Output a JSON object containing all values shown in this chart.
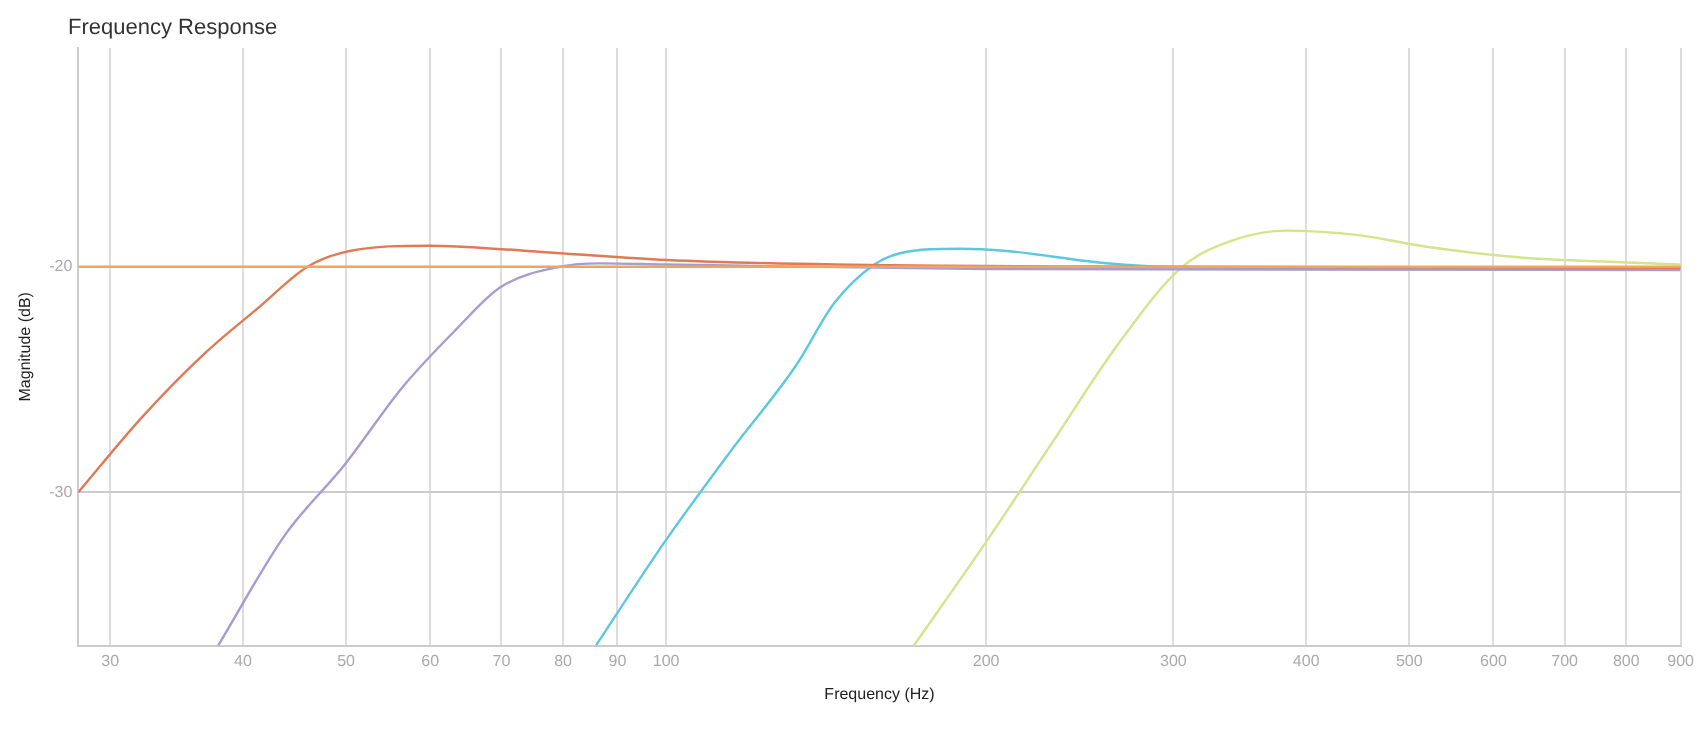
{
  "chart_data": {
    "type": "line",
    "title": "Frequency Response",
    "xlabel": "Frequency (Hz)",
    "ylabel": "Magnitude (dB)",
    "log": "x",
    "xlim": [
      28,
      900
    ],
    "ylim": [
      -36.8,
      -10.3
    ],
    "xticks": [
      30,
      40,
      50,
      60,
      70,
      80,
      90,
      100,
      200,
      300,
      400,
      500,
      600,
      700,
      800,
      900
    ],
    "yticks": [
      -30,
      -20
    ],
    "grid": true,
    "legend": false,
    "marker": "none",
    "line_style": "solid",
    "series": [
      {
        "color": "#f2a55a",
        "x": [
          28,
          100,
          300,
          900
        ],
        "values": [
          -20,
          -20,
          -20,
          -20
        ]
      },
      {
        "color": "#e07a55",
        "x": [
          28,
          32.1,
          36.9,
          41.4,
          46,
          50.4,
          59.8,
          63.5,
          79.5,
          100,
          144,
          300,
          900
        ],
        "values": [
          -30,
          -26.7,
          -23.8,
          -21.8,
          -20,
          -19.3,
          -19.07,
          -19.1,
          -19.4,
          -19.7,
          -19.9,
          -20,
          -20.05
        ]
      },
      {
        "color": "#a99bd0",
        "x": [
          37.9,
          43.8,
          49.8,
          56.6,
          63.4,
          69.9,
          79.5,
          86.5,
          100,
          200,
          900
        ],
        "values": [
          -36.8,
          -31.9,
          -28.8,
          -25.3,
          -22.8,
          -20.9,
          -20,
          -19.85,
          -19.9,
          -20.1,
          -20.15
        ]
      },
      {
        "color": "#5cc8e0",
        "x": [
          85.9,
          99.7,
          114.9,
          132.4,
          144,
          157,
          166,
          188.6,
          209,
          254,
          293,
          400,
          900
        ],
        "values": [
          -36.8,
          -32.2,
          -28.2,
          -24.4,
          -21.6,
          -19.9,
          -19.4,
          -19.2,
          -19.3,
          -19.8,
          -20,
          -20.05,
          -20.05
        ]
      },
      {
        "color": "#d6e28c",
        "x": [
          171,
          200,
          230,
          265.5,
          305,
          338,
          383,
          448,
          517,
          640,
          791,
          900
        ],
        "values": [
          -36.8,
          -32.2,
          -27.9,
          -23.5,
          -20.05,
          -18.9,
          -18.4,
          -18.6,
          -19.1,
          -19.6,
          -19.8,
          -19.9
        ]
      }
    ]
  }
}
